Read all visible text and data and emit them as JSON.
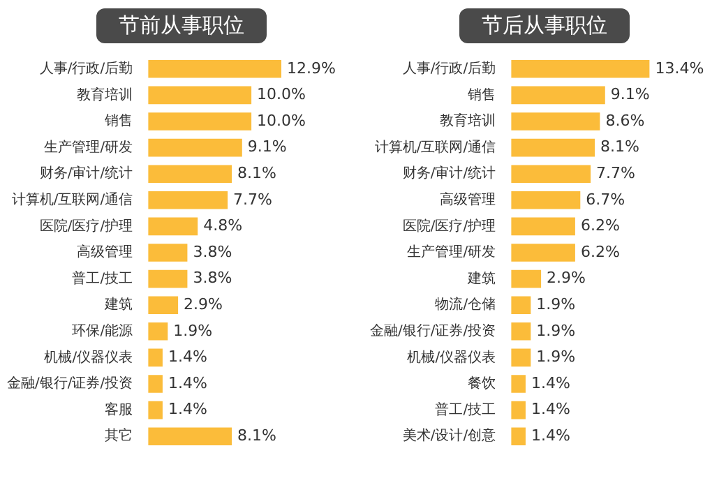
{
  "chart_data": [
    {
      "type": "bar",
      "orientation": "horizontal",
      "title": "节前从事职位",
      "categories": [
        "人事/行政/后勤",
        "教育培训",
        "销售",
        "生产管理/研发",
        "财务/审计/统计",
        "计算机/互联网/通信",
        "医院/医疗/护理",
        "高级管理",
        "普工/技工",
        "建筑",
        "环保/能源",
        "机械/仪器仪表",
        "金融/银行/证券/投资",
        "客服",
        "其它"
      ],
      "values": [
        12.9,
        10.0,
        10.0,
        9.1,
        8.1,
        7.7,
        4.8,
        3.8,
        3.8,
        2.9,
        1.9,
        1.4,
        1.4,
        1.4,
        8.1
      ],
      "value_labels": [
        "12.9%",
        "10.0%",
        "10.0%",
        "9.1%",
        "8.1%",
        "7.7%",
        "4.8%",
        "3.8%",
        "3.8%",
        "2.9%",
        "1.9%",
        "1.4%",
        "1.4%",
        "1.4%",
        "8.1%"
      ],
      "color": "#fbbc3a",
      "grid": false,
      "legend": false,
      "tick_labels": "y"
    },
    {
      "type": "bar",
      "orientation": "horizontal",
      "title": "节后从事职位",
      "categories": [
        "人事/行政/后勤",
        "销售",
        "教育培训",
        "计算机/互联网/通信",
        "财务/审计/统计",
        "高级管理",
        "医院/医疗/护理",
        "生产管理/研发",
        "建筑",
        "物流/仓储",
        "金融/银行/证券/投资",
        "机械/仪器仪表",
        "餐饮",
        "普工/技工",
        "美术/设计/创意"
      ],
      "values": [
        13.4,
        9.1,
        8.6,
        8.1,
        7.7,
        6.7,
        6.2,
        6.2,
        2.9,
        1.9,
        1.9,
        1.9,
        1.4,
        1.4,
        1.4
      ],
      "value_labels": [
        "13.4%",
        "9.1%",
        "8.6%",
        "8.1%",
        "7.7%",
        "6.7%",
        "6.2%",
        "6.2%",
        "2.9%",
        "1.9%",
        "1.9%",
        "1.9%",
        "1.4%",
        "1.4%",
        "1.4%"
      ],
      "color": "#fbbc3a",
      "grid": false,
      "legend": false,
      "tick_labels": "y"
    }
  ]
}
